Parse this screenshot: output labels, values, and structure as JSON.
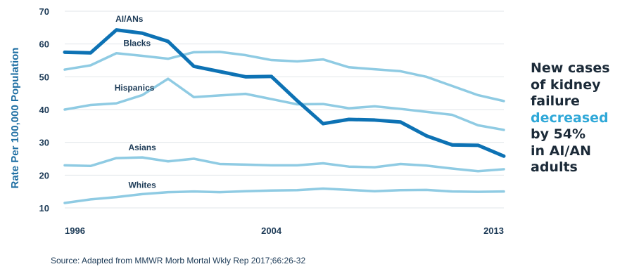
{
  "chart_data": {
    "type": "line",
    "ylabel": "Rate Per 100,000 Population",
    "ylim": [
      10,
      70
    ],
    "yticks": [
      10,
      20,
      30,
      40,
      50,
      60,
      70
    ],
    "xlim": [
      1996,
      2013
    ],
    "xticks": [
      1996,
      2004,
      2013
    ],
    "grid": true,
    "x": [
      1996,
      1997,
      1998,
      1999,
      2000,
      2001,
      2002,
      2003,
      2004,
      2005,
      2006,
      2007,
      2008,
      2009,
      2010,
      2011,
      2012,
      2013
    ],
    "series": [
      {
        "name": "AI/ANs",
        "color": "#0d72b4",
        "width": 5,
        "values": [
          57.5,
          57.3,
          64.3,
          63.3,
          60.8,
          53.2,
          51.6,
          50.0,
          50.1,
          42.7,
          35.7,
          37.0,
          36.8,
          36.2,
          32.0,
          29.2,
          29.1,
          25.8
        ]
      },
      {
        "name": "Blacks",
        "color": "#8fcbe3",
        "width": 3.5,
        "values": [
          52.2,
          53.5,
          57.2,
          56.4,
          55.5,
          57.5,
          57.6,
          56.6,
          55.1,
          54.7,
          55.3,
          52.9,
          52.3,
          51.7,
          50.0,
          47.2,
          44.4,
          42.6
        ]
      },
      {
        "name": "Hispanics",
        "color": "#8fcbe3",
        "width": 3.5,
        "values": [
          40.0,
          41.4,
          41.9,
          44.4,
          49.4,
          43.8,
          44.3,
          44.8,
          43.2,
          41.6,
          41.7,
          40.4,
          41.0,
          40.2,
          39.3,
          38.4,
          35.2,
          33.8
        ]
      },
      {
        "name": "Asians",
        "color": "#8fcbe3",
        "width": 3.5,
        "values": [
          23.0,
          22.8,
          25.2,
          25.4,
          24.2,
          25.0,
          23.4,
          23.2,
          23.0,
          23.0,
          23.6,
          22.6,
          22.4,
          23.4,
          22.9,
          22.0,
          21.2,
          21.8
        ]
      },
      {
        "name": "Whites",
        "color": "#8fcbe3",
        "width": 3.5,
        "values": [
          11.5,
          12.6,
          13.3,
          14.2,
          14.8,
          15.0,
          14.8,
          15.1,
          15.3,
          15.4,
          15.9,
          15.5,
          15.1,
          15.4,
          15.5,
          15.0,
          14.9,
          15.0
        ]
      }
    ]
  },
  "callout": {
    "line1": "New cases",
    "line2": "of kidney",
    "line3": "failure",
    "highlight": "decreased",
    "line5": "by 54%",
    "line6": "in AI/AN",
    "line7": "adults"
  },
  "source": "Source: Adapted from MMWR Morb Mortal Wkly Rep 2017;66:26-32"
}
